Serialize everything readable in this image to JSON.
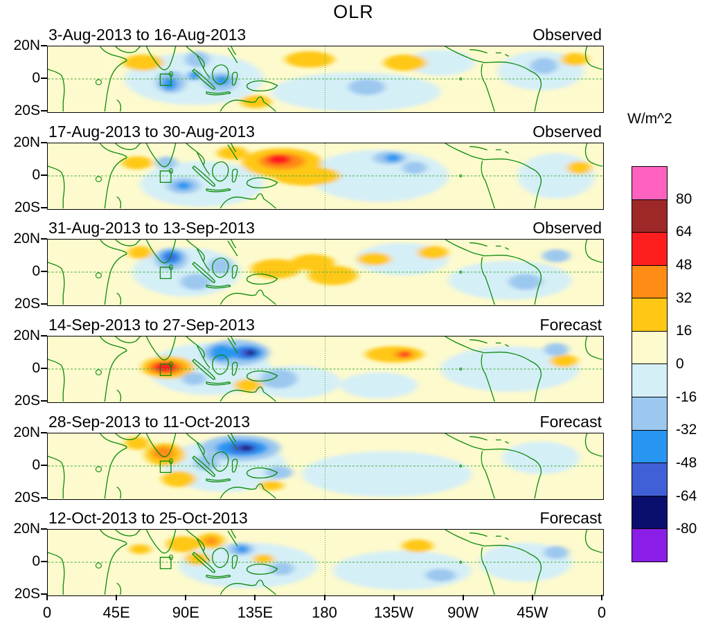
{
  "title": "OLR",
  "units_label": "W/m^2",
  "y_axis": {
    "ticks": [
      "20N",
      "0",
      "20S"
    ]
  },
  "x_axis": {
    "ticks": [
      "0",
      "45E",
      "90E",
      "135E",
      "180",
      "135W",
      "90W",
      "45W",
      "0"
    ]
  },
  "colorbar": {
    "tick_values": [
      80,
      64,
      48,
      32,
      16,
      0,
      -16,
      -32,
      -48,
      -64,
      -80
    ],
    "colors_top_to_bottom": [
      "#ff62be",
      "#9e2828",
      "#ff1e1e",
      "#ff8c14",
      "#ffc814",
      "#fdfacd",
      "#d5eff7",
      "#9cc8ef",
      "#2896f0",
      "#4060d8",
      "#0a0f6e",
      "#8a1ee6"
    ]
  },
  "chart_data": {
    "type": "heatmap",
    "subtype": "filled-contour-anomaly-maps",
    "map_extent": {
      "lon_min": 0,
      "lon_max": 360,
      "lat_min": -20,
      "lat_max": 20
    },
    "highlight_box": {
      "lon_min": 73,
      "lon_max": 80,
      "lat_min": -4,
      "lat_max": 3
    },
    "panels": [
      {
        "date_range": "3-Aug-2013 to 16-Aug-2013",
        "type": "Observed",
        "anomalies": [
          {
            "lon": 95,
            "lat": 0,
            "rlon": 45,
            "rlat": 16,
            "v": -8
          },
          {
            "lon": 200,
            "lat": -8,
            "rlon": 55,
            "rlat": 12,
            "v": -8
          },
          {
            "lon": 320,
            "lat": 5,
            "rlon": 28,
            "rlat": 12,
            "v": -8
          },
          {
            "lon": 255,
            "lat": 10,
            "rlon": 22,
            "rlat": 8,
            "v": -8
          },
          {
            "lon": 62,
            "lat": 10,
            "rlon": 13,
            "rlat": 5,
            "v": 24
          },
          {
            "lon": 170,
            "lat": 12,
            "rlon": 16,
            "rlat": 5,
            "v": 24
          },
          {
            "lon": 232,
            "lat": 10,
            "rlon": 14,
            "rlat": 5,
            "v": 24
          },
          {
            "lon": 342,
            "lat": 12,
            "rlon": 9,
            "rlat": 4,
            "v": 24
          },
          {
            "lon": 135,
            "lat": -14,
            "rlon": 10,
            "rlat": 4,
            "v": 24
          },
          {
            "lon": 80,
            "lat": -2,
            "rlon": 10,
            "rlat": 7,
            "v": -24
          },
          {
            "lon": 97,
            "lat": 12,
            "rlon": 8,
            "rlat": 5,
            "v": -24
          },
          {
            "lon": 112,
            "lat": -2,
            "rlon": 11,
            "rlat": 6,
            "v": -24
          },
          {
            "lon": 207,
            "lat": -5,
            "rlon": 12,
            "rlat": 5,
            "v": -24
          },
          {
            "lon": 322,
            "lat": 8,
            "rlon": 9,
            "rlat": 5,
            "v": -24
          },
          {
            "lon": 79,
            "lat": -3,
            "rlon": 5,
            "rlat": 4,
            "v": -40
          },
          {
            "lon": 113,
            "lat": -1,
            "rlon": 5,
            "rlat": 3,
            "v": -40
          },
          {
            "lon": 95,
            "lat": 2,
            "rlon": 4,
            "rlat": 3,
            "v": -40
          }
        ]
      },
      {
        "date_range": "17-Aug-2013 to 30-Aug-2013",
        "type": "Observed",
        "anomalies": [
          {
            "lon": 100,
            "lat": -5,
            "rlon": 40,
            "rlat": 14,
            "v": -8
          },
          {
            "lon": 215,
            "lat": 0,
            "rlon": 45,
            "rlat": 16,
            "v": -8
          },
          {
            "lon": 330,
            "lat": 0,
            "rlon": 25,
            "rlat": 14,
            "v": -8
          },
          {
            "lon": 152,
            "lat": 8,
            "rlon": 26,
            "rlat": 9,
            "v": 24
          },
          {
            "lon": 168,
            "lat": 0,
            "rlon": 22,
            "rlat": 6,
            "v": 24
          },
          {
            "lon": 58,
            "lat": 8,
            "rlon": 10,
            "rlat": 4,
            "v": 24
          },
          {
            "lon": 120,
            "lat": 14,
            "rlon": 10,
            "rlat": 4,
            "v": 24
          },
          {
            "lon": 345,
            "lat": 5,
            "rlon": 8,
            "rlat": 4,
            "v": 24
          },
          {
            "lon": 152,
            "lat": 9,
            "rlon": 15,
            "rlat": 5,
            "v": 40
          },
          {
            "lon": 150,
            "lat": 10,
            "rlon": 8,
            "rlat": 3,
            "v": 56
          },
          {
            "lon": 88,
            "lat": -6,
            "rlon": 11,
            "rlat": 5,
            "v": -24
          },
          {
            "lon": 77,
            "lat": 8,
            "rlon": 7,
            "rlat": 4,
            "v": -24
          },
          {
            "lon": 222,
            "lat": 11,
            "rlon": 11,
            "rlat": 4,
            "v": -24
          },
          {
            "lon": 238,
            "lat": 5,
            "rlon": 8,
            "rlat": 4,
            "v": -24
          },
          {
            "lon": 224,
            "lat": 11,
            "rlon": 5,
            "rlat": 2.5,
            "v": -40
          },
          {
            "lon": 88,
            "lat": -6,
            "rlon": 5,
            "rlat": 2.5,
            "v": -40
          }
        ]
      },
      {
        "date_range": "31-Aug-2013 to 13-Sep-2013",
        "type": "Observed",
        "anomalies": [
          {
            "lon": 90,
            "lat": 0,
            "rlon": 35,
            "rlat": 15,
            "v": -8
          },
          {
            "lon": 300,
            "lat": -5,
            "rlon": 40,
            "rlat": 12,
            "v": -8
          },
          {
            "lon": 230,
            "lat": 8,
            "rlon": 30,
            "rlat": 10,
            "v": -8
          },
          {
            "lon": 148,
            "lat": 2,
            "rlon": 16,
            "rlat": 6,
            "v": 24
          },
          {
            "lon": 172,
            "lat": 6,
            "rlon": 14,
            "rlat": 5,
            "v": 24
          },
          {
            "lon": 185,
            "lat": -2,
            "rlon": 16,
            "rlat": 6,
            "v": 24
          },
          {
            "lon": 212,
            "lat": 8,
            "rlon": 11,
            "rlat": 4,
            "v": 24
          },
          {
            "lon": 250,
            "lat": 12,
            "rlon": 10,
            "rlat": 4,
            "v": 24
          },
          {
            "lon": 60,
            "lat": 12,
            "rlon": 8,
            "rlat": 4,
            "v": 24
          },
          {
            "lon": 80,
            "lat": 8,
            "rlon": 11,
            "rlat": 7,
            "v": -24
          },
          {
            "lon": 96,
            "lat": -6,
            "rlon": 10,
            "rlat": 5,
            "v": -24
          },
          {
            "lon": 112,
            "lat": 4,
            "rlon": 8,
            "rlat": 5,
            "v": -24
          },
          {
            "lon": 310,
            "lat": -6,
            "rlon": 11,
            "rlat": 5,
            "v": -24
          },
          {
            "lon": 330,
            "lat": 10,
            "rlon": 9,
            "rlat": 4,
            "v": -24
          },
          {
            "lon": 80,
            "lat": 9,
            "rlon": 7,
            "rlat": 4.5,
            "v": -40
          },
          {
            "lon": 80,
            "lat": 9,
            "rlon": 3.5,
            "rlat": 2.5,
            "v": -56
          }
        ]
      },
      {
        "date_range": "14-Sep-2013 to 27-Sep-2013",
        "type": "Forecast",
        "anomalies": [
          {
            "lon": 105,
            "lat": 0,
            "rlon": 40,
            "rlat": 16,
            "v": -8
          },
          {
            "lon": 160,
            "lat": -8,
            "rlon": 30,
            "rlat": 10,
            "v": -8
          },
          {
            "lon": 300,
            "lat": 0,
            "rlon": 45,
            "rlat": 14,
            "v": -8
          },
          {
            "lon": 215,
            "lat": -10,
            "rlon": 25,
            "rlat": 8,
            "v": -8
          },
          {
            "lon": 78,
            "lat": 1,
            "rlon": 17,
            "rlat": 7,
            "v": 24
          },
          {
            "lon": 225,
            "lat": 9,
            "rlon": 19,
            "rlat": 5,
            "v": 24
          },
          {
            "lon": 130,
            "lat": -10,
            "rlon": 9,
            "rlat": 4,
            "v": 24
          },
          {
            "lon": 335,
            "lat": 5,
            "rlon": 9,
            "rlat": 4,
            "v": 24
          },
          {
            "lon": 77,
            "lat": 1,
            "rlon": 12,
            "rlat": 4.5,
            "v": 40
          },
          {
            "lon": 76,
            "lat": 1,
            "rlon": 8,
            "rlat": 3,
            "v": 56
          },
          {
            "lon": 231,
            "lat": 9,
            "rlon": 6,
            "rlat": 2.5,
            "v": 40
          },
          {
            "lon": 232,
            "lat": 9,
            "rlon": 3,
            "rlat": 1.8,
            "v": 56
          },
          {
            "lon": 122,
            "lat": 10,
            "rlon": 22,
            "rlat": 8,
            "v": -24
          },
          {
            "lon": 150,
            "lat": -6,
            "rlon": 12,
            "rlat": 6,
            "v": -24
          },
          {
            "lon": 95,
            "lat": -6,
            "rlon": 8,
            "rlat": 4,
            "v": -24
          },
          {
            "lon": 330,
            "lat": 12,
            "rlon": 8,
            "rlat": 4,
            "v": -24
          },
          {
            "lon": 113,
            "lat": 10,
            "rlon": 8,
            "rlat": 5,
            "v": -40
          },
          {
            "lon": 129,
            "lat": 10,
            "rlon": 11,
            "rlat": 4.5,
            "v": -40
          },
          {
            "lon": 130,
            "lat": 10,
            "rlon": 6,
            "rlat": 3,
            "v": -56
          },
          {
            "lon": 132,
            "lat": 10,
            "rlon": 3,
            "rlat": 1.8,
            "v": -72
          }
        ]
      },
      {
        "date_range": "28-Sep-2013 to 11-Oct-2013",
        "type": "Forecast",
        "anomalies": [
          {
            "lon": 115,
            "lat": 0,
            "rlon": 40,
            "rlat": 16,
            "v": -8
          },
          {
            "lon": 220,
            "lat": -5,
            "rlon": 55,
            "rlat": 14,
            "v": -8
          },
          {
            "lon": 320,
            "lat": 5,
            "rlon": 25,
            "rlat": 10,
            "v": -8
          },
          {
            "lon": 76,
            "lat": 7,
            "rlon": 13,
            "rlat": 7,
            "v": 24
          },
          {
            "lon": 85,
            "lat": -8,
            "rlon": 11,
            "rlat": 5,
            "v": 24
          },
          {
            "lon": 58,
            "lat": 14,
            "rlon": 8,
            "rlat": 4,
            "v": 24
          },
          {
            "lon": 145,
            "lat": -12,
            "rlon": 8,
            "rlat": 3,
            "v": 24
          },
          {
            "lon": 75,
            "lat": 8,
            "rlon": 7,
            "rlat": 4,
            "v": 40
          },
          {
            "lon": 125,
            "lat": 11,
            "rlon": 26,
            "rlat": 8,
            "v": -24
          },
          {
            "lon": 103,
            "lat": 2,
            "rlon": 8,
            "rlat": 5,
            "v": -24
          },
          {
            "lon": 150,
            "lat": -4,
            "rlon": 9,
            "rlat": 4,
            "v": -24
          },
          {
            "lon": 126,
            "lat": 11,
            "rlon": 17,
            "rlat": 5,
            "v": -40
          },
          {
            "lon": 127,
            "lat": 11,
            "rlon": 9,
            "rlat": 3,
            "v": -56
          },
          {
            "lon": 129,
            "lat": 11,
            "rlon": 4,
            "rlat": 1.6,
            "v": -72
          }
        ]
      },
      {
        "date_range": "12-Oct-2013 to 25-Oct-2013",
        "type": "Forecast",
        "anomalies": [
          {
            "lon": 130,
            "lat": -2,
            "rlon": 45,
            "rlat": 14,
            "v": -8
          },
          {
            "lon": 230,
            "lat": -5,
            "rlon": 45,
            "rlat": 12,
            "v": -8
          },
          {
            "lon": 310,
            "lat": 0,
            "rlon": 30,
            "rlat": 12,
            "v": -8
          },
          {
            "lon": 88,
            "lat": 11,
            "rlon": 11,
            "rlat": 5,
            "v": 24
          },
          {
            "lon": 106,
            "lat": 13,
            "rlon": 9,
            "rlat": 5,
            "v": 24
          },
          {
            "lon": 97,
            "lat": 2,
            "rlon": 8,
            "rlat": 4,
            "v": 24
          },
          {
            "lon": 140,
            "lat": 2,
            "rlon": 7,
            "rlat": 3,
            "v": 24
          },
          {
            "lon": 240,
            "lat": 10,
            "rlon": 10,
            "rlat": 4,
            "v": 24
          },
          {
            "lon": 60,
            "lat": 8,
            "rlon": 7,
            "rlat": 3,
            "v": 24
          },
          {
            "lon": 106,
            "lat": 13,
            "rlon": 4,
            "rlat": 2.5,
            "v": 40
          },
          {
            "lon": 125,
            "lat": 8,
            "rlon": 9,
            "rlat": 4,
            "v": -24
          },
          {
            "lon": 152,
            "lat": -4,
            "rlon": 8,
            "rlat": 4,
            "v": -24
          },
          {
            "lon": 255,
            "lat": -8,
            "rlon": 10,
            "rlat": 4,
            "v": -24
          },
          {
            "lon": 330,
            "lat": 6,
            "rlon": 8,
            "rlat": 4,
            "v": -24
          },
          {
            "lon": 126,
            "lat": 8,
            "rlon": 4,
            "rlat": 2.5,
            "v": -40
          }
        ]
      }
    ]
  }
}
